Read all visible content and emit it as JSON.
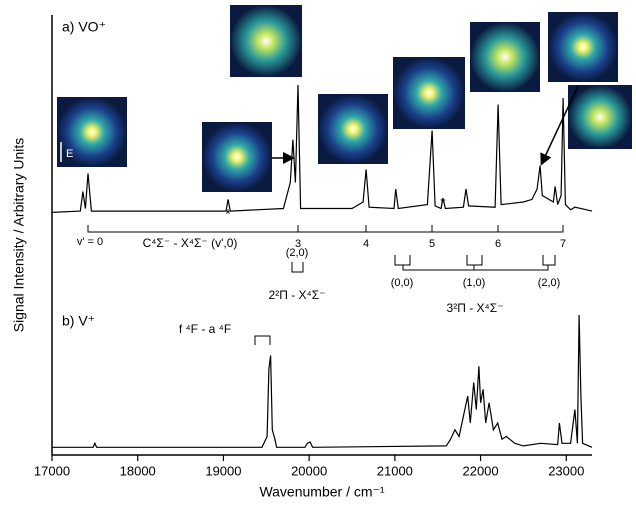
{
  "chart_data": {
    "type": "line",
    "x_label": "Wavenumber / cm⁻¹",
    "y_label": "Signal Intensity / Arbitrary Units",
    "xlim": [
      17000,
      23300
    ],
    "xticks": [
      17000,
      18000,
      19000,
      20000,
      21000,
      22000,
      23000
    ],
    "panels": [
      {
        "label": "a) VO⁺",
        "color": "#000000",
        "ylim": [
          0,
          1
        ],
        "x": [
          17000,
          17330,
          17360,
          17390,
          17420,
          17460,
          18500,
          19030,
          19054,
          19080,
          19700,
          19780,
          19810,
          19840,
          19870,
          19900,
          20500,
          20630,
          20664,
          20700,
          20990,
          21010,
          21040,
          21380,
          21434,
          21470,
          21540,
          21560,
          21590,
          21800,
          21830,
          21860,
          22170,
          22204,
          22240,
          22500,
          22600,
          22660,
          22694,
          22720,
          22850,
          22870,
          22900,
          22940,
          22963,
          22990,
          23050,
          23100,
          23300
        ],
        "values": [
          0.02,
          0.03,
          0.18,
          0.05,
          0.32,
          0.03,
          0.03,
          0.03,
          0.12,
          0.03,
          0.05,
          0.25,
          0.58,
          0.25,
          1.0,
          0.05,
          0.05,
          0.1,
          0.35,
          0.06,
          0.05,
          0.2,
          0.05,
          0.08,
          0.65,
          0.07,
          0.05,
          0.13,
          0.05,
          0.06,
          0.2,
          0.07,
          0.06,
          0.85,
          0.08,
          0.1,
          0.12,
          0.2,
          0.38,
          0.15,
          0.1,
          0.22,
          0.08,
          0.15,
          0.9,
          0.08,
          0.04,
          0.06,
          0.03
        ]
      },
      {
        "label": "b) V⁺",
        "color": "#000000",
        "ylim": [
          0,
          1
        ],
        "x": [
          17000,
          17480,
          17500,
          17520,
          19450,
          19510,
          19530,
          19550,
          19570,
          19600,
          19620,
          19950,
          19980,
          20010,
          20040,
          21600,
          21650,
          21700,
          21750,
          21800,
          21850,
          21880,
          21920,
          21950,
          21980,
          22000,
          22030,
          22060,
          22100,
          22150,
          22200,
          22250,
          22300,
          22400,
          22500,
          22700,
          22900,
          22920,
          22950,
          23050,
          23100,
          23130,
          23150,
          23170,
          23190,
          23300
        ],
        "values": [
          0.02,
          0.02,
          0.05,
          0.02,
          0.02,
          0.1,
          0.6,
          0.7,
          0.15,
          0.08,
          0.02,
          0.02,
          0.05,
          0.06,
          0.02,
          0.03,
          0.08,
          0.15,
          0.1,
          0.25,
          0.4,
          0.2,
          0.5,
          0.3,
          0.62,
          0.35,
          0.45,
          0.2,
          0.35,
          0.15,
          0.2,
          0.08,
          0.1,
          0.05,
          0.03,
          0.05,
          0.04,
          0.2,
          0.05,
          0.05,
          0.3,
          0.05,
          1.0,
          0.4,
          0.05,
          0.02
        ]
      }
    ],
    "annotations": {
      "progression": "C⁴Σ⁻ - X⁴Σ⁻ (v',0)",
      "v_labels": [
        "v' = 0",
        "3",
        "4",
        "5",
        "6",
        "7"
      ],
      "band_2pi": "2²Π - X⁴Σ⁻",
      "band_2pi_label": "(2,0)",
      "band_3pi": "3²Π - X⁴Σ⁻",
      "band_3pi_labels": [
        "(0,0)",
        "(1,0)",
        "(2,0)"
      ],
      "atomic": "f ⁴F - a ⁴F",
      "stars": [
        "*",
        "*"
      ],
      "polarization": "E"
    }
  }
}
